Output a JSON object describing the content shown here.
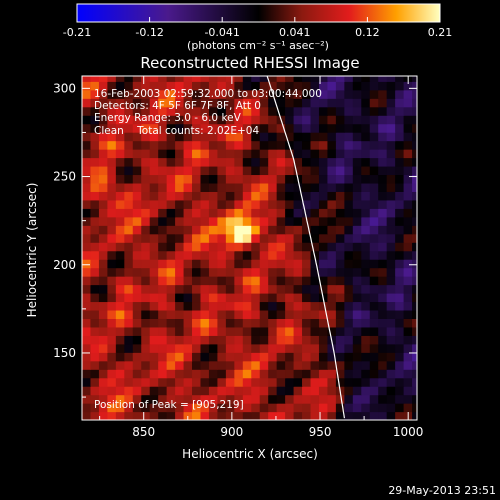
{
  "chart_data": {
    "type": "heatmap",
    "title": "Reconstructed RHESSI Image",
    "xlabel": "Heliocentric X (arcsec)",
    "ylabel": "Heliocentric Y (arcsec)",
    "xlim": [
      815,
      1005
    ],
    "ylim": [
      112,
      307
    ],
    "x_ticks": [
      850,
      900,
      950,
      1000
    ],
    "y_ticks": [
      150,
      200,
      250,
      300
    ],
    "colorbar": {
      "min": -0.21,
      "max": 0.21,
      "tick_labels": [
        "-0.21",
        "-0.12",
        "-0.041",
        "0.041",
        "0.12",
        "0.21"
      ],
      "unit_label": "(photons cm⁻² s⁻¹ asec⁻²)"
    },
    "annotations": {
      "time_range": "16-Feb-2003 02:59:32.000 to 03:00:44.000",
      "detectors": "Detectors: 4F 5F 6F 7F 8F, Att 0",
      "energy_range": "Energy Range: 3.0 - 6.0 keV",
      "method_counts": "Clean    Total counts: 2.02E+04",
      "peak": "Position of Peak = [905,219]"
    },
    "peak": {
      "x": 905,
      "y": 219,
      "value": 0.21
    },
    "secondary_peak": {
      "x": 825,
      "y": 240,
      "value": 0.14
    },
    "limb_curve": [
      [
        920,
        307
      ],
      [
        935,
        260
      ],
      [
        948,
        200
      ],
      [
        958,
        150
      ],
      [
        964,
        112
      ]
    ],
    "timestamp": "29-May-2013 23:51"
  }
}
